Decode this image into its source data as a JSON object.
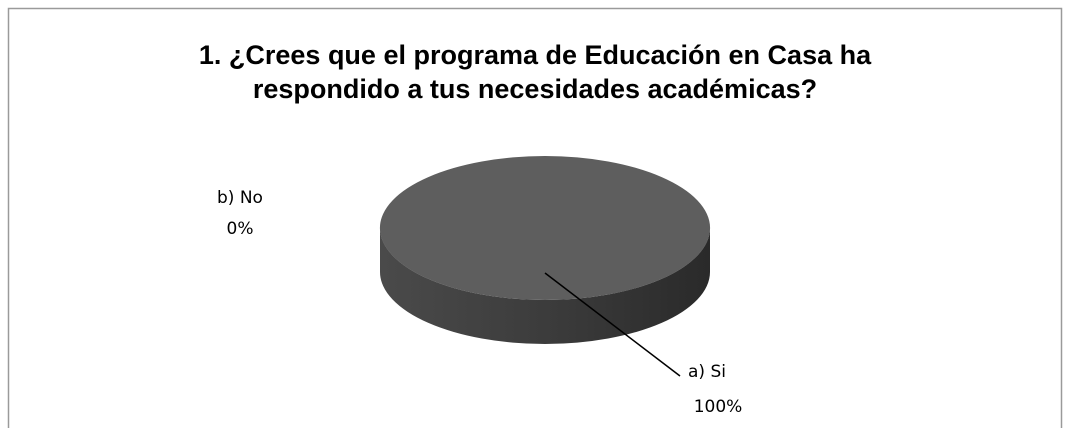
{
  "chart_data": {
    "type": "pie",
    "title": "1. ¿Crees que el programa de Educación en Casa ha respondido a tus necesidades académicas?",
    "categories": [
      "a) Si",
      "b) No"
    ],
    "values": [
      100,
      0
    ],
    "value_labels": [
      "100%",
      "0%"
    ],
    "colors": [
      "#5e5e5e",
      "#8a8a8a"
    ],
    "three_d": true
  }
}
